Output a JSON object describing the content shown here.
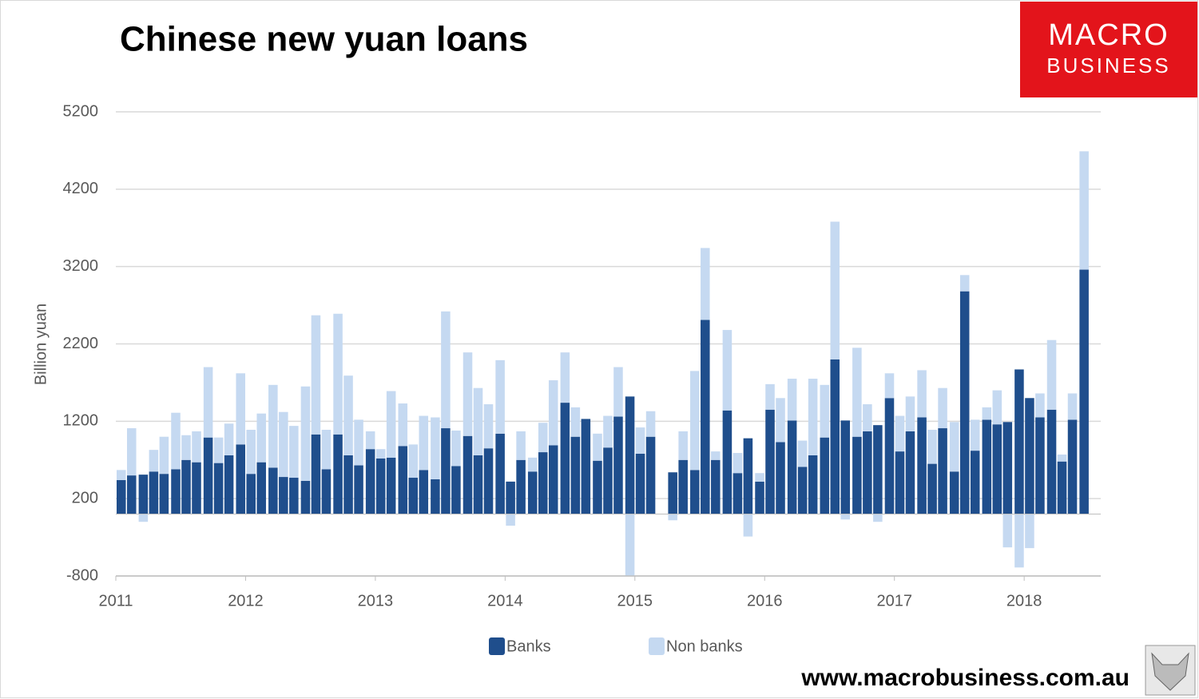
{
  "chart_data": {
    "type": "bar",
    "stacked": true,
    "title": "Chinese new yuan loans",
    "y_label": "Billion yuan",
    "logo": [
      "MACRO",
      "BUSINESS"
    ],
    "website": "www.macrobusiness.com.au",
    "x": [
      2011,
      2011.08,
      2011.17,
      2011.25,
      2011.33,
      2011.42,
      2011.5,
      2011.58,
      2011.67,
      2011.75,
      2011.83,
      2011.92,
      2012,
      2012.08,
      2012.17,
      2012.25,
      2012.33,
      2012.42,
      2012.5,
      2012.58,
      2012.67,
      2012.75,
      2012.83,
      2012.92,
      2013,
      2013.08,
      2013.17,
      2013.25,
      2013.33,
      2013.42,
      2013.5,
      2013.58,
      2013.67,
      2013.75,
      2013.83,
      2013.92,
      2014,
      2014.08,
      2014.17,
      2014.25,
      2014.33,
      2014.42,
      2014.5,
      2014.58,
      2014.67,
      2014.75,
      2014.83,
      2014.92,
      2015,
      2015.08,
      2015.17,
      2015.25,
      2015.33,
      2015.42,
      2015.5,
      2015.58,
      2015.67,
      2015.75,
      2015.83,
      2015.92,
      2016,
      2016.08,
      2016.17,
      2016.25,
      2016.33,
      2016.42,
      2016.5,
      2016.58,
      2016.67,
      2016.75,
      2016.83,
      2016.92,
      2017,
      2017.08,
      2017.17,
      2017.25,
      2017.33,
      2017.42,
      2017.5,
      2017.58,
      2017.67,
      2017.75,
      2017.83,
      2017.92,
      2018,
      2018.08,
      2018.17,
      2018.25,
      2018.33,
      2018.42
    ],
    "series": [
      {
        "name": "Banks",
        "color": "#1f4e8c",
        "values": [
          440,
          500,
          510,
          550,
          520,
          580,
          700,
          670,
          990,
          660,
          760,
          900,
          520,
          670,
          600,
          480,
          470,
          430,
          1030,
          580,
          1030,
          760,
          630,
          840,
          720,
          730,
          880,
          470,
          570,
          450,
          1110,
          620,
          1010,
          760,
          850,
          1040,
          420,
          700,
          550,
          800,
          890,
          1440,
          1000,
          1230,
          690,
          860,
          1260,
          1520,
          780,
          1000,
          null,
          540,
          700,
          570,
          2510,
          700,
          1340,
          530,
          980,
          420,
          1350,
          930,
          1210,
          610,
          760,
          990,
          2000,
          1210,
          1000,
          1070,
          1150,
          1500,
          810,
          1070,
          1250,
          650,
          1110,
          550,
          2880,
          820,
          1220,
          1160,
          1190,
          1870,
          1500,
          1250,
          1350,
          680,
          1220,
          3160
        ]
      },
      {
        "name": "Non banks",
        "color": "#c5d9f1",
        "values": [
          130,
          610,
          -100,
          280,
          480,
          730,
          320,
          400,
          910,
          330,
          410,
          920,
          570,
          630,
          1070,
          840,
          670,
          1220,
          1540,
          510,
          1560,
          1030,
          590,
          230,
          120,
          860,
          550,
          430,
          700,
          800,
          1510,
          460,
          1080,
          870,
          570,
          950,
          -150,
          370,
          180,
          380,
          840,
          650,
          380,
          0,
          350,
          410,
          640,
          -800,
          340,
          330,
          null,
          -80,
          370,
          1280,
          930,
          110,
          1040,
          260,
          -290,
          110,
          330,
          570,
          540,
          340,
          990,
          680,
          1780,
          -70,
          1150,
          350,
          -100,
          320,
          460,
          450,
          610,
          440,
          520,
          640,
          210,
          400,
          160,
          440,
          -430,
          -690,
          -440,
          310,
          900,
          90,
          340,
          1530
        ]
      }
    ],
    "xlim": [
      2011,
      2018.59
    ],
    "xticks": [
      2011,
      2012,
      2013,
      2014,
      2015,
      2016,
      2017,
      2018
    ],
    "ylim": [
      -800,
      5200
    ],
    "yticks": [
      -800,
      200,
      1200,
      2200,
      3200,
      4200,
      5200
    ],
    "grid": true,
    "legend": "bottom"
  }
}
